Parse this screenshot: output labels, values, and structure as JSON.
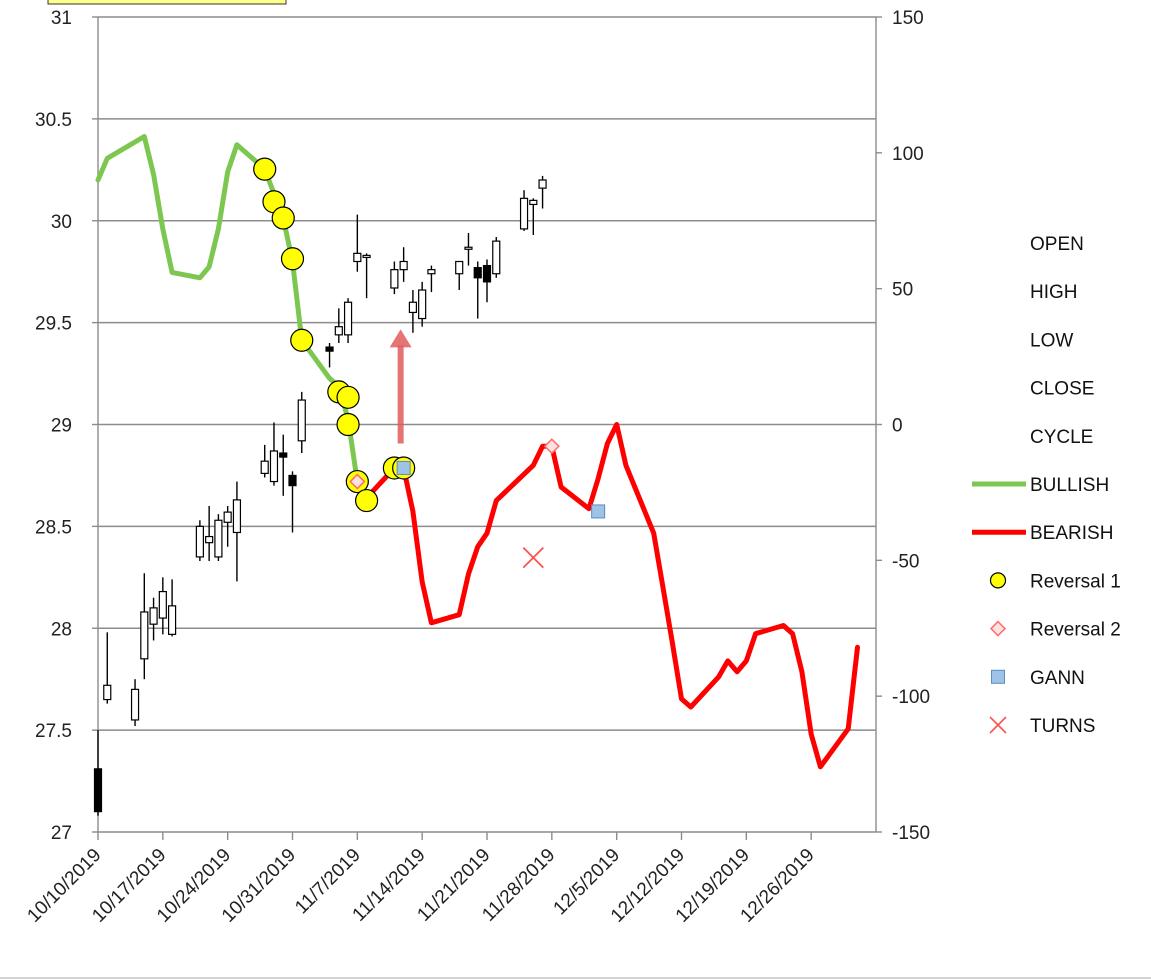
{
  "chart_data": {
    "type": "line",
    "y_left": {
      "ticks": [
        "27",
        "27.5",
        "28",
        "28.5",
        "29",
        "29.5",
        "30",
        "30.5",
        "31"
      ],
      "range": [
        27,
        31
      ]
    },
    "y_right": {
      "ticks": [
        "-150",
        "-100",
        "-50",
        "0",
        "50",
        "100",
        "150"
      ],
      "range": [
        -150,
        150
      ]
    },
    "x_ticks": [
      "10/10/2019",
      "10/17/2019",
      "10/24/2019",
      "10/31/2019",
      "11/7/2019",
      "11/14/2019",
      "11/21/2019",
      "11/28/2019",
      "12/5/2019",
      "12/12/2019",
      "12/19/2019",
      "12/26/2019"
    ],
    "x_range": [
      "2019-10-10",
      "2020-01-02"
    ],
    "legend": [
      {
        "name": "OPEN",
        "marker": "none"
      },
      {
        "name": "HIGH",
        "marker": "none"
      },
      {
        "name": "LOW",
        "marker": "none"
      },
      {
        "name": "CLOSE",
        "marker": "none"
      },
      {
        "name": "CYCLE",
        "marker": "none"
      },
      {
        "name": "BULLISH",
        "marker": "line-green"
      },
      {
        "name": "BEARISH",
        "marker": "line-red"
      },
      {
        "name": "Reversal 1",
        "marker": "circle-yellow"
      },
      {
        "name": "Reversal 2",
        "marker": "diamond-pink"
      },
      {
        "name": "GANN",
        "marker": "square-blue"
      },
      {
        "name": "TURNS",
        "marker": "x-red"
      }
    ],
    "colors": {
      "bullish": "#7dc750",
      "bearish": "#ff0000",
      "reversal1": "#ffff00",
      "reversal2": "#ff6a6a",
      "gann": "#9dc3e6",
      "turns": "#ff5050",
      "arrow": "#e05c5c",
      "candle": "#000000",
      "grid": "#8c8c8c"
    },
    "candles": [
      {
        "date": "2019-10-10",
        "open": 27.31,
        "high": 27.5,
        "low": 27.08,
        "close": 27.1
      },
      {
        "date": "2019-10-11",
        "open": 27.65,
        "high": 27.98,
        "low": 27.63,
        "close": 27.72
      },
      {
        "date": "2019-10-14",
        "open": 27.55,
        "high": 27.75,
        "low": 27.52,
        "close": 27.7
      },
      {
        "date": "2019-10-15",
        "open": 27.85,
        "high": 28.27,
        "low": 27.75,
        "close": 28.08
      },
      {
        "date": "2019-10-16",
        "open": 28.02,
        "high": 28.15,
        "low": 27.94,
        "close": 28.1
      },
      {
        "date": "2019-10-17",
        "open": 28.05,
        "high": 28.25,
        "low": 27.97,
        "close": 28.18
      },
      {
        "date": "2019-10-18",
        "open": 27.97,
        "high": 28.24,
        "low": 27.96,
        "close": 28.11
      },
      {
        "date": "2019-10-21",
        "open": 28.35,
        "high": 28.53,
        "low": 28.33,
        "close": 28.5
      },
      {
        "date": "2019-10-22",
        "open": 28.42,
        "high": 28.6,
        "low": 28.33,
        "close": 28.45
      },
      {
        "date": "2019-10-23",
        "open": 28.35,
        "high": 28.56,
        "low": 28.33,
        "close": 28.53
      },
      {
        "date": "2019-10-24",
        "open": 28.52,
        "high": 28.6,
        "low": 28.4,
        "close": 28.57
      },
      {
        "date": "2019-10-25",
        "open": 28.47,
        "high": 28.72,
        "low": 28.23,
        "close": 28.63
      },
      {
        "date": "2019-10-28",
        "open": 28.76,
        "high": 28.9,
        "low": 28.74,
        "close": 28.82
      },
      {
        "date": "2019-10-29",
        "open": 28.72,
        "high": 29.01,
        "low": 28.7,
        "close": 28.87
      },
      {
        "date": "2019-10-30",
        "open": 28.86,
        "high": 28.95,
        "low": 28.65,
        "close": 28.84
      },
      {
        "date": "2019-10-31",
        "open": 28.75,
        "high": 28.77,
        "low": 28.47,
        "close": 28.7
      },
      {
        "date": "2019-11-01",
        "open": 28.92,
        "high": 29.16,
        "low": 28.86,
        "close": 29.12
      },
      {
        "date": "2019-11-04",
        "open": 29.38,
        "high": 29.4,
        "low": 29.28,
        "close": 29.36
      },
      {
        "date": "2019-11-05",
        "open": 29.44,
        "high": 29.57,
        "low": 29.4,
        "close": 29.48
      },
      {
        "date": "2019-11-06",
        "open": 29.44,
        "high": 29.62,
        "low": 29.4,
        "close": 29.6
      },
      {
        "date": "2019-11-07",
        "open": 29.8,
        "high": 30.03,
        "low": 29.75,
        "close": 29.84
      },
      {
        "date": "2019-11-08",
        "open": 29.82,
        "high": 29.84,
        "low": 29.62,
        "close": 29.83
      },
      {
        "date": "2019-11-11",
        "open": 29.67,
        "high": 29.8,
        "low": 29.64,
        "close": 29.76
      },
      {
        "date": "2019-11-12",
        "open": 29.76,
        "high": 29.87,
        "low": 29.7,
        "close": 29.8
      },
      {
        "date": "2019-11-13",
        "open": 29.55,
        "high": 29.66,
        "low": 29.45,
        "close": 29.6
      },
      {
        "date": "2019-11-14",
        "open": 29.52,
        "high": 29.7,
        "low": 29.48,
        "close": 29.66
      },
      {
        "date": "2019-11-15",
        "open": 29.74,
        "high": 29.78,
        "low": 29.65,
        "close": 29.76
      },
      {
        "date": "2019-11-18",
        "open": 29.74,
        "high": 29.8,
        "low": 29.66,
        "close": 29.8
      },
      {
        "date": "2019-11-19",
        "open": 29.86,
        "high": 29.94,
        "low": 29.78,
        "close": 29.87
      },
      {
        "date": "2019-11-20",
        "open": 29.77,
        "high": 29.8,
        "low": 29.52,
        "close": 29.72
      },
      {
        "date": "2019-11-21",
        "open": 29.78,
        "high": 29.81,
        "low": 29.6,
        "close": 29.7
      },
      {
        "date": "2019-11-22",
        "open": 29.74,
        "high": 29.92,
        "low": 29.72,
        "close": 29.9
      },
      {
        "date": "2019-11-25",
        "open": 29.96,
        "high": 30.15,
        "low": 29.95,
        "close": 30.11
      },
      {
        "date": "2019-11-26",
        "open": 30.08,
        "high": 30.11,
        "low": 29.93,
        "close": 30.1
      },
      {
        "date": "2019-11-27",
        "open": 30.16,
        "high": 30.22,
        "low": 30.06,
        "close": 30.2
      }
    ],
    "cycle": [
      {
        "date": "2019-10-10",
        "value": 90
      },
      {
        "date": "2019-10-11",
        "value": 98
      },
      {
        "date": "2019-10-14",
        "value": 104
      },
      {
        "date": "2019-10-15",
        "value": 106
      },
      {
        "date": "2019-10-16",
        "value": 92
      },
      {
        "date": "2019-10-17",
        "value": 72
      },
      {
        "date": "2019-10-18",
        "value": 56
      },
      {
        "date": "2019-10-21",
        "value": 54
      },
      {
        "date": "2019-10-22",
        "value": 58
      },
      {
        "date": "2019-10-23",
        "value": 72
      },
      {
        "date": "2019-10-24",
        "value": 93
      },
      {
        "date": "2019-10-25",
        "value": 103
      },
      {
        "date": "2019-10-28",
        "value": 94
      },
      {
        "date": "2019-10-29",
        "value": 85
      },
      {
        "date": "2019-10-30",
        "value": 76
      },
      {
        "date": "2019-10-31",
        "value": 60
      },
      {
        "date": "2019-11-01",
        "value": 31
      },
      {
        "date": "2019-11-04",
        "value": 17
      },
      {
        "date": "2019-11-05",
        "value": 14
      },
      {
        "date": "2019-11-06",
        "value": 2
      },
      {
        "date": "2019-11-07",
        "value": -21
      },
      {
        "date": "2019-11-08",
        "value": -27
      },
      {
        "date": "2019-11-11",
        "value": -16
      },
      {
        "date": "2019-11-12",
        "value": -16
      },
      {
        "date": "2019-11-13",
        "value": -32
      },
      {
        "date": "2019-11-14",
        "value": -58
      },
      {
        "date": "2019-11-15",
        "value": -73
      },
      {
        "date": "2019-11-18",
        "value": -70
      },
      {
        "date": "2019-11-19",
        "value": -55
      },
      {
        "date": "2019-11-20",
        "value": -45
      },
      {
        "date": "2019-11-21",
        "value": -40
      },
      {
        "date": "2019-11-22",
        "value": -28
      },
      {
        "date": "2019-11-26",
        "value": -15
      },
      {
        "date": "2019-11-27",
        "value": -8
      },
      {
        "date": "2019-11-28",
        "value": -8
      },
      {
        "date": "2019-11-29",
        "value": -23
      },
      {
        "date": "2019-12-02",
        "value": -31
      },
      {
        "date": "2019-12-03",
        "value": -20
      },
      {
        "date": "2019-12-04",
        "value": -7
      },
      {
        "date": "2019-12-05",
        "value": 0
      },
      {
        "date": "2019-12-06",
        "value": -15
      },
      {
        "date": "2019-12-09",
        "value": -40
      },
      {
        "date": "2019-12-10",
        "value": -60
      },
      {
        "date": "2019-12-11",
        "value": -80
      },
      {
        "date": "2019-12-12",
        "value": -101
      },
      {
        "date": "2019-12-13",
        "value": -104
      },
      {
        "date": "2019-12-16",
        "value": -93
      },
      {
        "date": "2019-12-17",
        "value": -87
      },
      {
        "date": "2019-12-18",
        "value": -91
      },
      {
        "date": "2019-12-19",
        "value": -87
      },
      {
        "date": "2019-12-20",
        "value": -77
      },
      {
        "date": "2019-12-23",
        "value": -74
      },
      {
        "date": "2019-12-24",
        "value": -77
      },
      {
        "date": "2019-12-25",
        "value": -91
      },
      {
        "date": "2019-12-26",
        "value": -114
      },
      {
        "date": "2019-12-27",
        "value": -126
      },
      {
        "date": "2019-12-30",
        "value": -112
      },
      {
        "date": "2019-12-31",
        "value": -82
      }
    ],
    "bullish_range": [
      "2019-10-10",
      "2019-11-08"
    ],
    "bearish_range": [
      "2019-11-08",
      "2019-12-31"
    ],
    "reversal1": [
      {
        "date": "2019-10-28",
        "value": 94
      },
      {
        "date": "2019-10-29",
        "value": 82
      },
      {
        "date": "2019-10-30",
        "value": 76
      },
      {
        "date": "2019-10-31",
        "value": 61
      },
      {
        "date": "2019-11-01",
        "value": 31
      },
      {
        "date": "2019-11-05",
        "value": 12
      },
      {
        "date": "2019-11-06",
        "value": 10
      },
      {
        "date": "2019-11-06",
        "value": 0
      },
      {
        "date": "2019-11-07",
        "value": -21
      },
      {
        "date": "2019-11-08",
        "value": -28
      },
      {
        "date": "2019-11-11",
        "value": -16
      },
      {
        "date": "2019-11-12",
        "value": -16
      }
    ],
    "reversal2": [
      {
        "date": "2019-11-07",
        "value": -21
      },
      {
        "date": "2019-11-28",
        "value": -8
      }
    ],
    "gann": [
      {
        "date": "2019-11-12",
        "value": -16
      },
      {
        "date": "2019-12-03",
        "value": -32
      }
    ],
    "turns": [
      {
        "date": "2019-11-26",
        "value": -49
      }
    ],
    "annotation_arrow": {
      "date": "2019-11-12",
      "from": -7,
      "to": 35
    }
  }
}
